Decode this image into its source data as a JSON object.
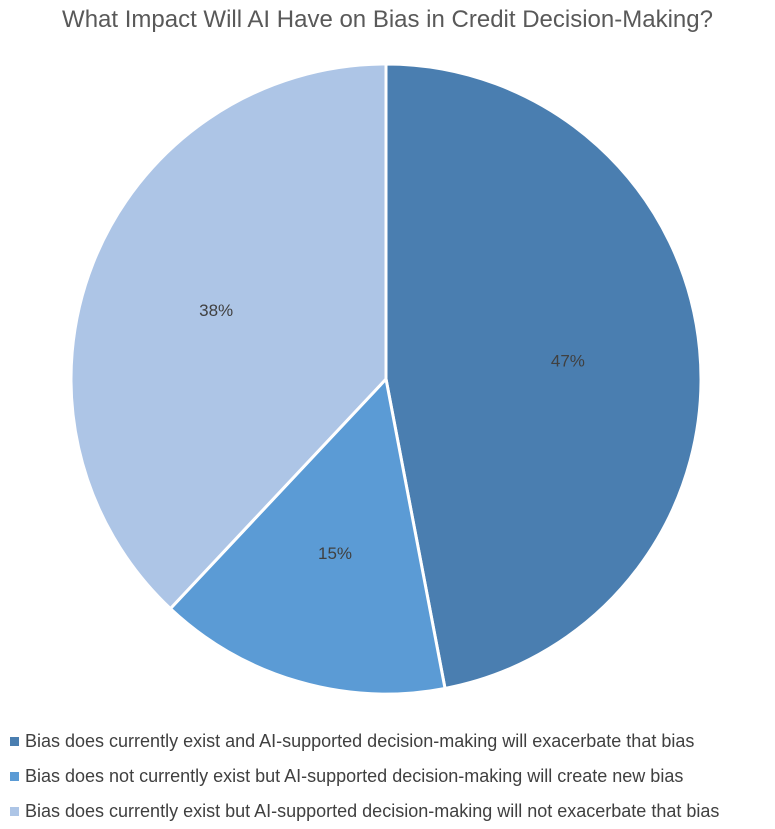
{
  "chart_data": {
    "type": "pie",
    "title": "What Impact Will AI Have on Bias in Credit Decision-Making?",
    "slices": [
      {
        "label": "Bias does currently exist and AI-supported decision-making will exacerbate that bias",
        "value": 47,
        "display": "47%",
        "color": "#4a7eb0"
      },
      {
        "label": "Bias does not currently exist but AI-supported decision-making will create new bias",
        "value": 15,
        "display": "15%",
        "color": "#5b9bd5"
      },
      {
        "label": "Bias does currently exist but AI-supported decision-making will not exacerbate that bias",
        "value": 38,
        "display": "38%",
        "color": "#adc5e6"
      }
    ],
    "legend_position": "bottom",
    "start_angle": "12 o'clock",
    "direction": "clockwise"
  }
}
